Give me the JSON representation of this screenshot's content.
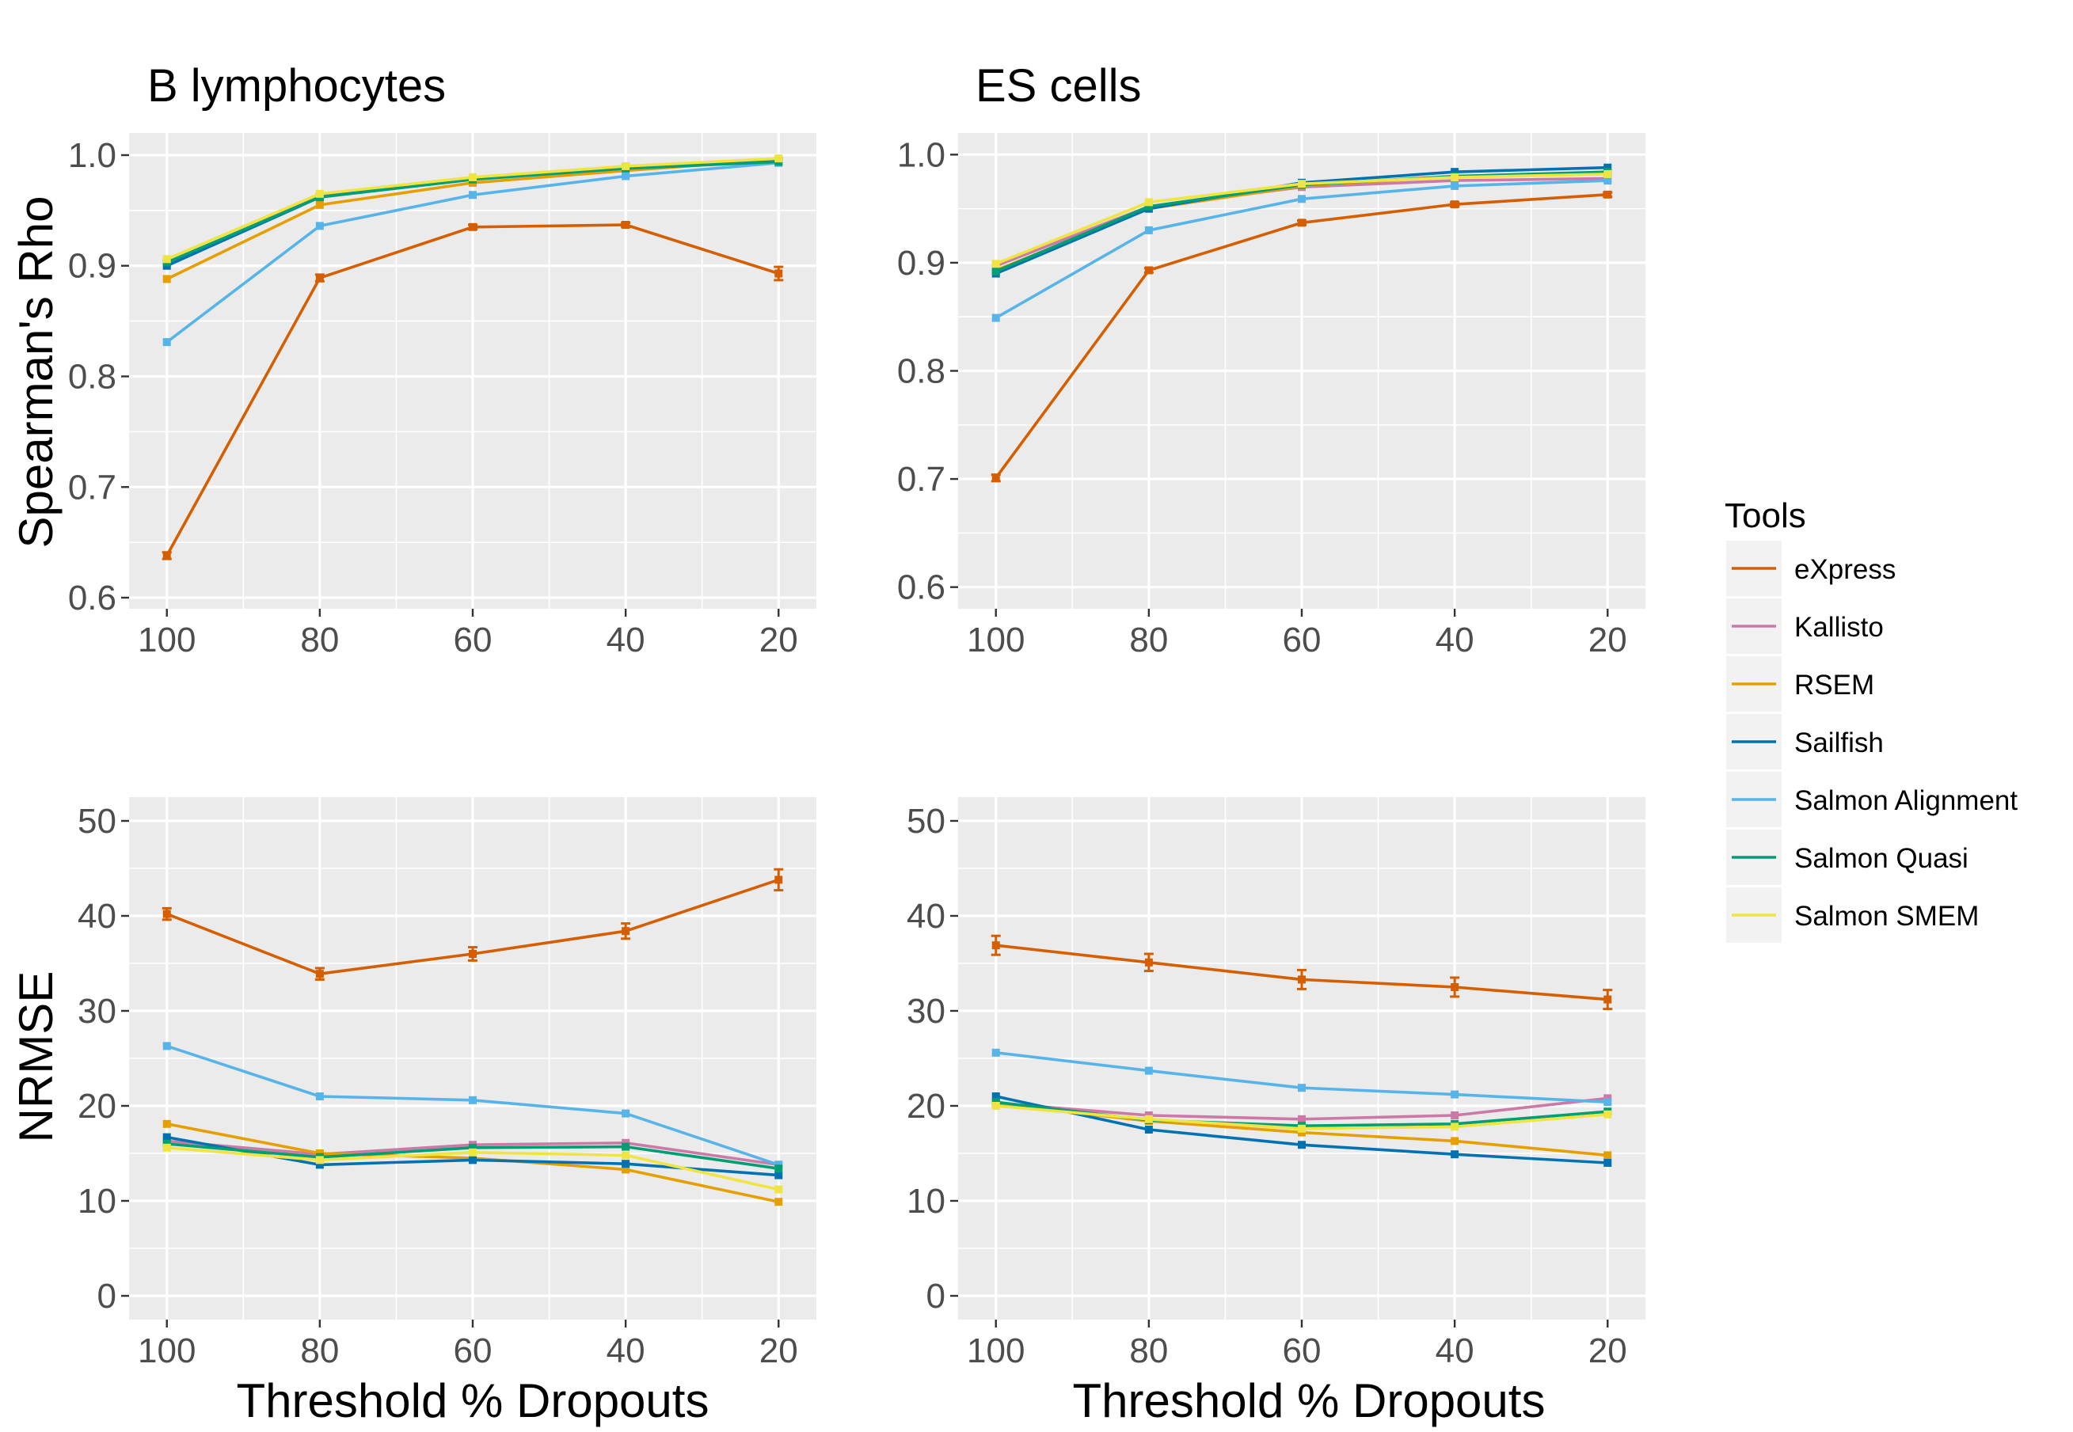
{
  "legend": {
    "title": "Tools",
    "items": [
      {
        "name": "eXpress",
        "color": "#D55E00"
      },
      {
        "name": "Kallisto",
        "color": "#CC79A7"
      },
      {
        "name": "RSEM",
        "color": "#E69F00"
      },
      {
        "name": "Sailfish",
        "color": "#0072B2"
      },
      {
        "name": "Salmon Alignment",
        "color": "#56B4E9"
      },
      {
        "name": "Salmon Quasi",
        "color": "#009E73"
      },
      {
        "name": "Salmon SMEM",
        "color": "#F0E442"
      }
    ]
  },
  "panel_background": "#EBEBEB",
  "chart_data": [
    {
      "type": "line",
      "title": "B lymphocytes",
      "xlabel": "",
      "ylabel": "Spearman's Rho",
      "categories": [
        "100",
        "80",
        "60",
        "40",
        "20"
      ],
      "yticks": [
        "0.6",
        "0.7",
        "0.8",
        "0.9",
        "1.0"
      ],
      "ylim": [
        0.59,
        1.02
      ],
      "series": [
        {
          "name": "eXpress",
          "values": [
            0.638,
            0.889,
            0.935,
            0.937,
            0.893
          ],
          "err": [
            0.003,
            0.003,
            0.002,
            0.002,
            0.006
          ]
        },
        {
          "name": "Kallisto",
          "values": [
            0.902,
            0.963,
            0.979,
            0.989,
            0.995
          ]
        },
        {
          "name": "RSEM",
          "values": [
            0.888,
            0.955,
            0.975,
            0.986,
            0.996
          ]
        },
        {
          "name": "Sailfish",
          "values": [
            0.9,
            0.962,
            0.979,
            0.989,
            0.995
          ]
        },
        {
          "name": "Salmon Alignment",
          "values": [
            0.831,
            0.936,
            0.964,
            0.981,
            0.993
          ]
        },
        {
          "name": "Salmon Quasi",
          "values": [
            0.903,
            0.962,
            0.978,
            0.988,
            0.994
          ]
        },
        {
          "name": "Salmon SMEM",
          "values": [
            0.906,
            0.965,
            0.98,
            0.99,
            0.997
          ]
        }
      ]
    },
    {
      "type": "line",
      "title": "ES cells",
      "xlabel": "",
      "ylabel": "",
      "categories": [
        "100",
        "80",
        "60",
        "40",
        "20"
      ],
      "yticks": [
        "0.6",
        "0.7",
        "0.8",
        "0.9",
        "1.0"
      ],
      "ylim": [
        0.58,
        1.02
      ],
      "series": [
        {
          "name": "eXpress",
          "values": [
            0.701,
            0.893,
            0.937,
            0.954,
            0.963
          ],
          "err": [
            0.003,
            0.002,
            0.002,
            0.002,
            0.002
          ]
        },
        {
          "name": "Kallisto",
          "values": [
            0.897,
            0.952,
            0.97,
            0.976,
            0.978
          ]
        },
        {
          "name": "RSEM",
          "values": [
            0.893,
            0.95,
            0.971,
            0.98,
            0.983
          ]
        },
        {
          "name": "Sailfish",
          "values": [
            0.89,
            0.95,
            0.974,
            0.984,
            0.988
          ]
        },
        {
          "name": "Salmon Alignment",
          "values": [
            0.849,
            0.93,
            0.959,
            0.971,
            0.976
          ]
        },
        {
          "name": "Salmon Quasi",
          "values": [
            0.892,
            0.952,
            0.972,
            0.98,
            0.984
          ]
        },
        {
          "name": "Salmon SMEM",
          "values": [
            0.899,
            0.956,
            0.973,
            0.979,
            0.982
          ]
        }
      ]
    },
    {
      "type": "line",
      "title": "",
      "xlabel": "Threshold % Dropouts",
      "ylabel": "NRMSE",
      "categories": [
        "100",
        "80",
        "60",
        "40",
        "20"
      ],
      "yticks": [
        "0",
        "10",
        "20",
        "30",
        "40",
        "50"
      ],
      "ylim": [
        -2.5,
        52.5
      ],
      "series": [
        {
          "name": "eXpress",
          "values": [
            40.2,
            33.9,
            36.0,
            38.4,
            43.8
          ],
          "err": [
            0.6,
            0.6,
            0.7,
            0.8,
            1.1
          ]
        },
        {
          "name": "Kallisto",
          "values": [
            16.3,
            14.9,
            15.9,
            16.1,
            13.8
          ]
        },
        {
          "name": "RSEM",
          "values": [
            18.1,
            15.0,
            14.5,
            13.3,
            9.9
          ]
        },
        {
          "name": "Sailfish",
          "values": [
            16.7,
            13.8,
            14.3,
            13.9,
            12.7
          ]
        },
        {
          "name": "Salmon Alignment",
          "values": [
            26.3,
            21.0,
            20.6,
            19.2,
            13.8
          ]
        },
        {
          "name": "Salmon Quasi",
          "values": [
            16.0,
            14.6,
            15.6,
            15.7,
            13.4
          ]
        },
        {
          "name": "Salmon SMEM",
          "values": [
            15.6,
            14.3,
            15.1,
            14.8,
            11.2
          ]
        }
      ]
    },
    {
      "type": "line",
      "title": "",
      "xlabel": "Threshold % Dropouts",
      "ylabel": "",
      "categories": [
        "100",
        "80",
        "60",
        "40",
        "20"
      ],
      "yticks": [
        "0",
        "10",
        "20",
        "30",
        "40",
        "50"
      ],
      "ylim": [
        -2.5,
        52.5
      ],
      "series": [
        {
          "name": "eXpress",
          "values": [
            36.9,
            35.1,
            33.3,
            32.5,
            31.2
          ],
          "err": [
            1.0,
            0.9,
            1.0,
            1.0,
            1.0
          ]
        },
        {
          "name": "Kallisto",
          "values": [
            20.3,
            19.0,
            18.6,
            19.0,
            20.8
          ]
        },
        {
          "name": "RSEM",
          "values": [
            20.2,
            18.4,
            17.2,
            16.3,
            14.8
          ]
        },
        {
          "name": "Sailfish",
          "values": [
            21.0,
            17.5,
            15.9,
            14.9,
            14.0
          ]
        },
        {
          "name": "Salmon Alignment",
          "values": [
            25.6,
            23.7,
            21.9,
            21.2,
            20.4
          ]
        },
        {
          "name": "Salmon Quasi",
          "values": [
            20.4,
            18.5,
            17.9,
            18.1,
            19.4
          ]
        },
        {
          "name": "Salmon SMEM",
          "values": [
            20.0,
            18.6,
            17.6,
            17.8,
            19.1
          ]
        }
      ]
    }
  ]
}
